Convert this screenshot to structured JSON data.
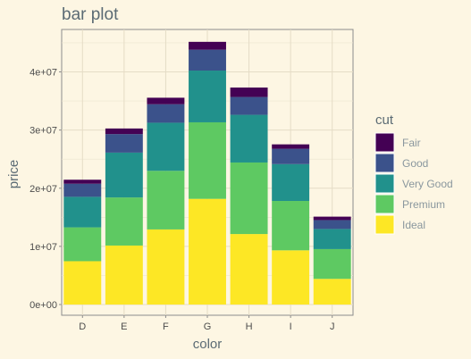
{
  "chart_data": {
    "type": "bar",
    "stacked": true,
    "title": "bar plot",
    "xlabel": "color",
    "ylabel": "price",
    "categories": [
      "D",
      "E",
      "F",
      "G",
      "H",
      "I",
      "J"
    ],
    "ylim": [
      0,
      47000000
    ],
    "yticks": [
      0,
      10000000,
      20000000,
      30000000,
      40000000
    ],
    "ytick_labels": [
      "0e+00",
      "1e+07",
      "2e+07",
      "3e+07",
      "4e+07"
    ],
    "grid": true,
    "legend_title": "cut",
    "legend_position": "right",
    "series": [
      {
        "name": "Ideal",
        "color": "#fde725",
        "values": [
          7450000,
          10140000,
          12910000,
          18170000,
          12120000,
          9320000,
          4410000
        ]
      },
      {
        "name": "Premium",
        "color": "#5ec962",
        "values": [
          5820000,
          8270000,
          10080000,
          13160000,
          12300000,
          8490000,
          5120000
        ]
      },
      {
        "name": "Very Good",
        "color": "#21918c",
        "values": [
          5250000,
          7710000,
          8270000,
          8900000,
          8200000,
          6330000,
          3460000
        ]
      },
      {
        "name": "Good",
        "color": "#3b528b",
        "values": [
          2250000,
          3190000,
          3180000,
          3590000,
          3070000,
          2640000,
          1530000
        ]
      },
      {
        "name": "Fair",
        "color": "#440154",
        "values": [
          690000,
          960000,
          1120000,
          1350000,
          1620000,
          760000,
          590000
        ]
      }
    ]
  }
}
